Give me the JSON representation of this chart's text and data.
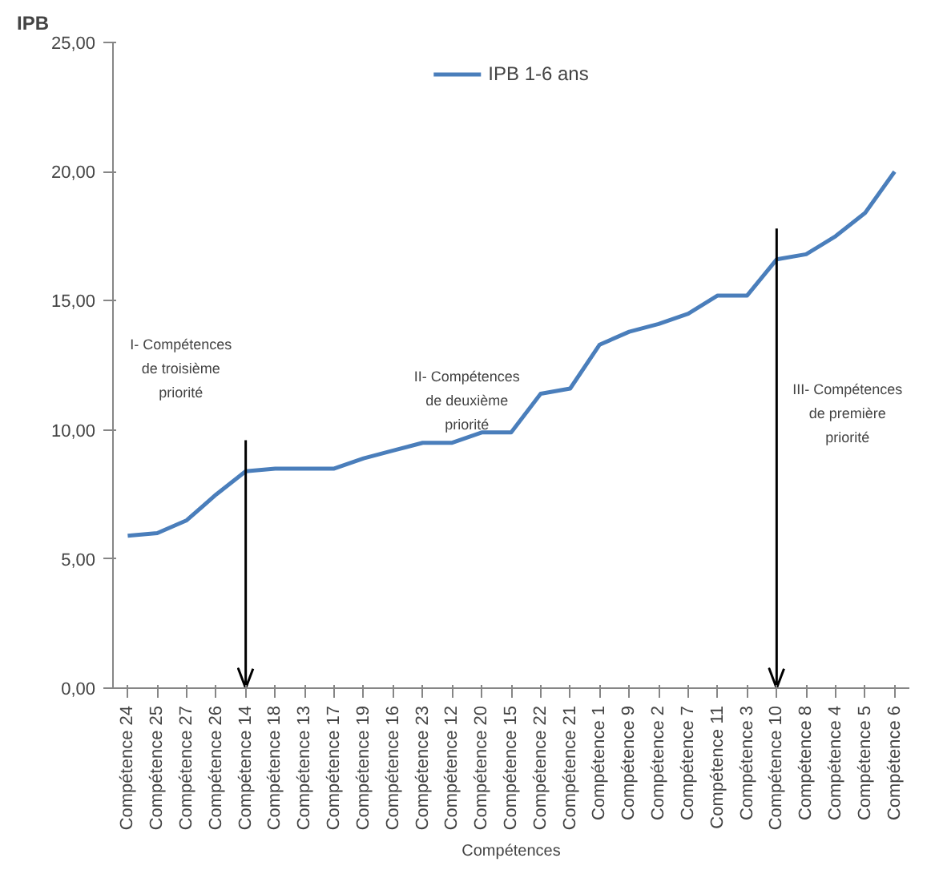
{
  "chart_data": {
    "type": "line",
    "xlabel": "Compétences",
    "ylabel": "IPB",
    "categories": [
      "Compétence 24",
      "Compétence 25",
      "Compétence 27",
      "Compétence 26",
      "Compétence 14",
      "Compétence 18",
      "Compétence 13",
      "Compétence 17",
      "Compétence 19",
      "Compétence 16",
      "Compétence 23",
      "Compétence 12",
      "Compétence 20",
      "Compétence 15",
      "Compétence 22",
      "Compétence 21",
      "Compétence 1",
      "Compétence 9",
      "Compétence 2",
      "Compétence 7",
      "Compétence 11",
      "Compétence 3",
      "Compétence 10",
      "Compétence 8",
      "Compétence 4",
      "Compétence 5",
      "Compétence 6"
    ],
    "series": [
      {
        "name": "IPB 1-6 ans",
        "color": "#4a7ebb",
        "values": [
          5.9,
          6.0,
          6.5,
          7.5,
          8.4,
          8.5,
          8.5,
          8.5,
          8.9,
          9.2,
          9.5,
          9.5,
          9.9,
          9.9,
          11.4,
          11.6,
          13.3,
          13.8,
          14.1,
          14.5,
          15.2,
          15.2,
          16.6,
          16.8,
          17.5,
          18.4,
          20.0
        ]
      }
    ],
    "ylim": [
      0,
      25
    ],
    "yticks": [
      {
        "value": 0,
        "label": "0,00"
      },
      {
        "value": 5,
        "label": "5,00"
      },
      {
        "value": 10,
        "label": "10,00"
      },
      {
        "value": 15,
        "label": "15,00"
      },
      {
        "value": 20,
        "label": "20,00"
      },
      {
        "value": 25,
        "label": "25,00"
      }
    ],
    "grid": false,
    "legend": "top",
    "marker": "none",
    "line_style": "solid",
    "ref_lines": [
      {
        "axis": "x",
        "value": "Compétence 14",
        "label": null,
        "color": "#000000"
      },
      {
        "axis": "x",
        "value": "Compétence 10",
        "label": null,
        "color": "#000000"
      }
    ],
    "annotations": [
      "I- Compétences\nde troisième\npriorité",
      "II- Compétences\nde deuxième\npriorité",
      "III- Compétences\nde première\npriorité"
    ]
  }
}
